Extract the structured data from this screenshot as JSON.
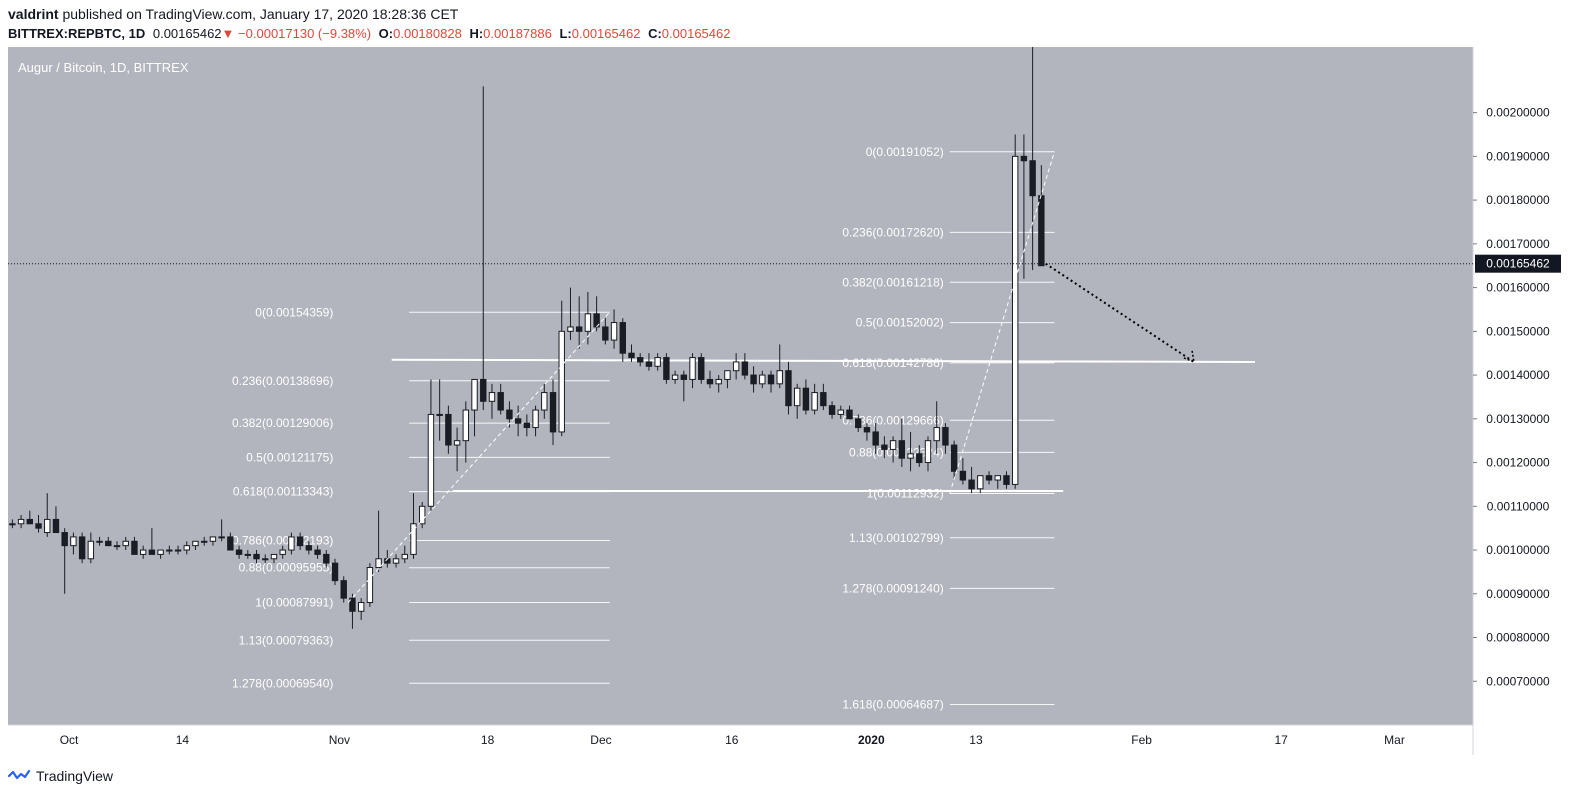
{
  "header": {
    "author": "valdrint",
    "published_text": "published on TradingView.com, January 17, 2020 18:28:36 CET",
    "symbol": "BITTREX:REPBTC, 1D",
    "last": "0.00165462",
    "change_arrow": "▼",
    "change": "−0.00017130 (−9.38%)",
    "o_label": "O:",
    "o_value": "0.00180828",
    "h_label": "H:",
    "h_value": "0.00187886",
    "l_label": "L:",
    "l_value": "0.00165462",
    "c_label": "C:",
    "c_value": "0.00165462"
  },
  "footer": {
    "brand": "TradingView",
    "logo_icon": "tradingview-logo-icon"
  },
  "colors": {
    "background": "#b2b5be",
    "candle_up": "#ffffff",
    "candle_down": "#1b1d24",
    "wick": "#1b1d24",
    "fib_line": "#ffffff",
    "price_badge": "#131722",
    "negative": "#e0473b"
  },
  "chart_data": {
    "type": "candlestick",
    "title": "Augur / Bitcoin, 1D, BITTREX",
    "ylim": [
      0.0006,
      0.00215
    ],
    "y_ticks": [
      "0.00200000",
      "0.00190000",
      "0.00180000",
      "0.00170000",
      "0.00160000",
      "0.00150000",
      "0.00140000",
      "0.00130000",
      "0.00120000",
      "0.00110000",
      "0.00100000",
      "0.00090000",
      "0.00080000",
      "0.00070000"
    ],
    "x_ticks": [
      "Oct",
      "14",
      "Nov",
      "18",
      "Dec",
      "16",
      "2020",
      "13",
      "Feb",
      "17",
      "Mar"
    ],
    "x_range": [
      "2019-09-24",
      "2020-03-10"
    ],
    "x_tick_dates": [
      "2019-10-01",
      "2019-10-14",
      "2019-11-01",
      "2019-11-18",
      "2019-12-01",
      "2019-12-16",
      "2020-01-01",
      "2020-01-13",
      "2020-02-01",
      "2020-02-17",
      "2020-03-01"
    ],
    "current_price": "0.00165462",
    "candles_note": "open/high/low/close per day, estimated",
    "candles": [
      [
        "2019-09-24",
        0.00106,
        0.00107,
        0.00105,
        0.00106
      ],
      [
        "2019-09-25",
        0.00106,
        0.00108,
        0.00105,
        0.00107
      ],
      [
        "2019-09-26",
        0.00107,
        0.00109,
        0.00106,
        0.00106
      ],
      [
        "2019-09-27",
        0.00106,
        0.00108,
        0.00104,
        0.00105
      ],
      [
        "2019-09-28",
        0.00104,
        0.00113,
        0.00103,
        0.00107
      ],
      [
        "2019-09-29",
        0.00107,
        0.0011,
        0.00104,
        0.00104
      ],
      [
        "2019-09-30",
        0.00104,
        0.00105,
        0.0009,
        0.00101
      ],
      [
        "2019-10-01",
        0.00101,
        0.00104,
        0.00099,
        0.00103
      ],
      [
        "2019-10-02",
        0.00103,
        0.00104,
        0.00097,
        0.00098
      ],
      [
        "2019-10-03",
        0.00098,
        0.00104,
        0.00097,
        0.00102
      ],
      [
        "2019-10-04",
        0.00102,
        0.00103,
        0.00101,
        0.00102
      ],
      [
        "2019-10-05",
        0.00102,
        0.00103,
        0.00101,
        0.00101
      ],
      [
        "2019-10-06",
        0.00101,
        0.00102,
        0.001,
        0.00101
      ],
      [
        "2019-10-07",
        0.00101,
        0.00103,
        0.001,
        0.00102
      ],
      [
        "2019-10-08",
        0.00102,
        0.00103,
        0.00099,
        0.00099
      ],
      [
        "2019-10-09",
        0.00099,
        0.00101,
        0.00098,
        0.001
      ],
      [
        "2019-10-10",
        0.001,
        0.00105,
        0.00099,
        0.00099
      ],
      [
        "2019-10-11",
        0.00099,
        0.001,
        0.00098,
        0.001
      ],
      [
        "2019-10-12",
        0.001,
        0.00101,
        0.00099,
        0.001
      ],
      [
        "2019-10-13",
        0.001,
        0.00101,
        0.00099,
        0.001
      ],
      [
        "2019-10-14",
        0.001,
        0.00102,
        0.00099,
        0.00101
      ],
      [
        "2019-10-15",
        0.00101,
        0.00102,
        0.001,
        0.00102
      ],
      [
        "2019-10-16",
        0.00102,
        0.00103,
        0.00101,
        0.00102
      ],
      [
        "2019-10-17",
        0.00102,
        0.00103,
        0.00101,
        0.00103
      ],
      [
        "2019-10-18",
        0.00103,
        0.00107,
        0.00102,
        0.00103
      ],
      [
        "2019-10-19",
        0.00103,
        0.00104,
        0.001,
        0.001
      ],
      [
        "2019-10-20",
        0.001,
        0.00101,
        0.00098,
        0.00099
      ],
      [
        "2019-10-21",
        0.00099,
        0.001,
        0.00098,
        0.00099
      ],
      [
        "2019-10-22",
        0.00099,
        0.001,
        0.00097,
        0.00098
      ],
      [
        "2019-10-23",
        0.00098,
        0.00099,
        0.00097,
        0.00098
      ],
      [
        "2019-10-24",
        0.00098,
        0.00099,
        0.00097,
        0.00099
      ],
      [
        "2019-10-25",
        0.00099,
        0.00101,
        0.00098,
        0.001
      ],
      [
        "2019-10-26",
        0.001,
        0.00104,
        0.00099,
        0.00103
      ],
      [
        "2019-10-27",
        0.00103,
        0.00104,
        0.001,
        0.00101
      ],
      [
        "2019-10-28",
        0.00101,
        0.00102,
        0.00099,
        0.001
      ],
      [
        "2019-10-29",
        0.001,
        0.00101,
        0.00098,
        0.00099
      ],
      [
        "2019-10-30",
        0.00099,
        0.001,
        0.00096,
        0.00097
      ],
      [
        "2019-10-31",
        0.00097,
        0.00098,
        0.00092,
        0.00093
      ],
      [
        "2019-11-01",
        0.00093,
        0.00094,
        0.00088,
        0.00089
      ],
      [
        "2019-11-02",
        0.00089,
        0.0009,
        0.00082,
        0.00086
      ],
      [
        "2019-11-03",
        0.00086,
        0.00089,
        0.00084,
        0.00088
      ],
      [
        "2019-11-04",
        0.00088,
        0.00097,
        0.00087,
        0.00096
      ],
      [
        "2019-11-05",
        0.00096,
        0.00109,
        0.00095,
        0.00098
      ],
      [
        "2019-11-06",
        0.00098,
        0.001,
        0.00096,
        0.00097
      ],
      [
        "2019-11-07",
        0.00097,
        0.00099,
        0.00096,
        0.00098
      ],
      [
        "2019-11-08",
        0.00098,
        0.00101,
        0.00097,
        0.00099
      ],
      [
        "2019-11-09",
        0.00099,
        0.00113,
        0.00098,
        0.00106
      ],
      [
        "2019-11-10",
        0.00106,
        0.00111,
        0.00105,
        0.0011
      ],
      [
        "2019-11-11",
        0.0011,
        0.00139,
        0.00109,
        0.00131
      ],
      [
        "2019-11-12",
        0.00131,
        0.00139,
        0.00125,
        0.00131
      ],
      [
        "2019-11-13",
        0.00131,
        0.00133,
        0.00122,
        0.00124
      ],
      [
        "2019-11-14",
        0.00124,
        0.00128,
        0.00118,
        0.00125
      ],
      [
        "2019-11-15",
        0.00125,
        0.00134,
        0.0012,
        0.00132
      ],
      [
        "2019-11-16",
        0.00132,
        0.00139,
        0.00126,
        0.00139
      ],
      [
        "2019-11-17",
        0.00139,
        0.00206,
        0.00132,
        0.00134
      ],
      [
        "2019-11-18",
        0.00134,
        0.00138,
        0.0013,
        0.00136
      ],
      [
        "2019-11-19",
        0.00136,
        0.00138,
        0.00131,
        0.00132
      ],
      [
        "2019-11-20",
        0.00132,
        0.00134,
        0.00128,
        0.0013
      ],
      [
        "2019-11-21",
        0.0013,
        0.00133,
        0.00126,
        0.00129
      ],
      [
        "2019-11-22",
        0.00129,
        0.00131,
        0.00126,
        0.00128
      ],
      [
        "2019-11-23",
        0.00128,
        0.00133,
        0.00126,
        0.00132
      ],
      [
        "2019-11-24",
        0.00132,
        0.00138,
        0.0013,
        0.00136
      ],
      [
        "2019-11-25",
        0.00136,
        0.00139,
        0.00124,
        0.00127
      ],
      [
        "2019-11-26",
        0.00127,
        0.00157,
        0.00126,
        0.0015
      ],
      [
        "2019-11-27",
        0.0015,
        0.0016,
        0.00148,
        0.00151
      ],
      [
        "2019-11-28",
        0.00151,
        0.00158,
        0.00146,
        0.0015
      ],
      [
        "2019-11-29",
        0.0015,
        0.00159,
        0.00147,
        0.00154
      ],
      [
        "2019-11-30",
        0.00154,
        0.00158,
        0.0015,
        0.00151
      ],
      [
        "2019-12-01",
        0.00151,
        0.00153,
        0.00147,
        0.00148
      ],
      [
        "2019-12-02",
        0.00148,
        0.00155,
        0.00146,
        0.00152
      ],
      [
        "2019-12-03",
        0.00152,
        0.00153,
        0.00143,
        0.00145
      ],
      [
        "2019-12-04",
        0.00145,
        0.00147,
        0.00143,
        0.00144
      ],
      [
        "2019-12-05",
        0.00144,
        0.00145,
        0.00142,
        0.00143
      ],
      [
        "2019-12-06",
        0.00143,
        0.00145,
        0.00141,
        0.00142
      ],
      [
        "2019-12-07",
        0.00142,
        0.00145,
        0.00141,
        0.00144
      ],
      [
        "2019-12-08",
        0.00144,
        0.00145,
        0.00138,
        0.00139
      ],
      [
        "2019-12-09",
        0.00139,
        0.00141,
        0.00138,
        0.0014
      ],
      [
        "2019-12-10",
        0.0014,
        0.00141,
        0.00134,
        0.00139
      ],
      [
        "2019-12-11",
        0.00139,
        0.00145,
        0.00137,
        0.00144
      ],
      [
        "2019-12-12",
        0.00144,
        0.00145,
        0.00138,
        0.00139
      ],
      [
        "2019-12-13",
        0.00139,
        0.00141,
        0.00137,
        0.00138
      ],
      [
        "2019-12-14",
        0.00138,
        0.0014,
        0.00136,
        0.00139
      ],
      [
        "2019-12-15",
        0.00139,
        0.00141,
        0.00137,
        0.00141
      ],
      [
        "2019-12-16",
        0.00141,
        0.00145,
        0.00139,
        0.00143
      ],
      [
        "2019-12-17",
        0.00143,
        0.00145,
        0.00139,
        0.0014
      ],
      [
        "2019-12-18",
        0.0014,
        0.00142,
        0.00136,
        0.00138
      ],
      [
        "2019-12-19",
        0.00138,
        0.00141,
        0.00137,
        0.0014
      ],
      [
        "2019-12-20",
        0.0014,
        0.00141,
        0.00136,
        0.00138
      ],
      [
        "2019-12-21",
        0.00138,
        0.00147,
        0.00137,
        0.00141
      ],
      [
        "2019-12-22",
        0.00141,
        0.00143,
        0.00131,
        0.00133
      ],
      [
        "2019-12-23",
        0.00133,
        0.00138,
        0.0013,
        0.00137
      ],
      [
        "2019-12-24",
        0.00137,
        0.00139,
        0.00131,
        0.00132
      ],
      [
        "2019-12-25",
        0.00132,
        0.00138,
        0.00131,
        0.00136
      ],
      [
        "2019-12-26",
        0.00136,
        0.00138,
        0.00132,
        0.00133
      ],
      [
        "2019-12-27",
        0.00133,
        0.00134,
        0.0013,
        0.00131
      ],
      [
        "2019-12-28",
        0.00131,
        0.00133,
        0.0013,
        0.00132
      ],
      [
        "2019-12-29",
        0.00132,
        0.00133,
        0.0013,
        0.0013
      ],
      [
        "2019-12-30",
        0.0013,
        0.00131,
        0.00127,
        0.00128
      ],
      [
        "2019-12-31",
        0.00128,
        0.00129,
        0.00125,
        0.00127
      ],
      [
        "2020-01-01",
        0.00127,
        0.00129,
        0.00122,
        0.00124
      ],
      [
        "2020-01-02",
        0.00124,
        0.00126,
        0.00121,
        0.00123
      ],
      [
        "2020-01-03",
        0.00123,
        0.00126,
        0.0012,
        0.00125
      ],
      [
        "2020-01-04",
        0.00125,
        0.0013,
        0.00119,
        0.00121
      ],
      [
        "2020-01-05",
        0.00121,
        0.00127,
        0.00118,
        0.00122
      ],
      [
        "2020-01-06",
        0.00122,
        0.00124,
        0.00119,
        0.0012
      ],
      [
        "2020-01-07",
        0.0012,
        0.00126,
        0.00118,
        0.00125
      ],
      [
        "2020-01-08",
        0.00125,
        0.00134,
        0.00122,
        0.00128
      ],
      [
        "2020-01-09",
        0.00128,
        0.00129,
        0.00122,
        0.00124
      ],
      [
        "2020-01-10",
        0.00124,
        0.00125,
        0.00116,
        0.00118
      ],
      [
        "2020-01-11",
        0.00118,
        0.00121,
        0.00115,
        0.00116
      ],
      [
        "2020-01-12",
        0.00116,
        0.00119,
        0.00113,
        0.00114
      ],
      [
        "2020-01-13",
        0.00114,
        0.00117,
        0.00113,
        0.00117
      ],
      [
        "2020-01-14",
        0.00117,
        0.00118,
        0.00115,
        0.00116
      ],
      [
        "2020-01-15",
        0.00116,
        0.00117,
        0.00114,
        0.00117
      ],
      [
        "2020-01-16",
        0.00117,
        0.00118,
        0.00114,
        0.00115
      ],
      [
        "2020-01-17",
        0.00115,
        0.00195,
        0.00114,
        0.0019
      ],
      [
        "2020-01-18",
        0.0019,
        0.00195,
        0.00162,
        0.00189
      ],
      [
        "2020-01-19",
        0.00189,
        0.00215,
        0.00164,
        0.00181
      ],
      [
        "2020-01-20",
        0.00181,
        0.00188,
        0.00165,
        0.00165
      ]
    ],
    "fib_sets": [
      {
        "start_date": "2019-11-09",
        "end_date": "2019-12-02",
        "label_right_date": "2019-11-01",
        "levels": [
          {
            "label": "0(0.00154359)",
            "value": 0.00154359
          },
          {
            "label": "0.236(0.00138696)",
            "value": 0.00138696
          },
          {
            "label": "0.382(0.00129006)",
            "value": 0.00129006
          },
          {
            "label": "0.5(0.00121175)",
            "value": 0.00121175
          },
          {
            "label": "0.618(0.00113343)",
            "value": 0.00113343
          },
          {
            "label": "0.786(0.00102193)",
            "value": 0.00102193
          },
          {
            "label": "0.88(0.00095955)",
            "value": 0.00095955
          },
          {
            "label": "1(0.00087991)",
            "value": 0.00087991
          },
          {
            "label": "1.13(0.00079363)",
            "value": 0.00079363
          },
          {
            "label": "1.278(0.00069540)",
            "value": 0.0006954
          }
        ]
      },
      {
        "start_date": "2020-01-10",
        "end_date": "2020-01-22",
        "label_right_date": "2020-01-10",
        "levels": [
          {
            "label": "0(0.00191052)",
            "value": 0.00191052
          },
          {
            "label": "0.236(0.00172620)",
            "value": 0.0017262
          },
          {
            "label": "0.382(0.00161218)",
            "value": 0.00161218
          },
          {
            "label": "0.5(0.00152002)",
            "value": 0.00152002
          },
          {
            "label": "0.618(0.00142786)",
            "value": 0.00142786
          },
          {
            "label": "0.786(0.00129666)",
            "value": 0.00129666
          },
          {
            "label": "0.88(0.00122324)",
            "value": 0.00122324
          },
          {
            "label": "1(0.00112932)",
            "value": 0.00112932
          },
          {
            "label": "1.13(0.00102799)",
            "value": 0.00102799
          },
          {
            "label": "1.278(0.00091240)",
            "value": 0.0009124
          },
          {
            "label": "1.618(0.00064687)",
            "value": 0.00064687
          }
        ]
      }
    ],
    "horizontal_lines": [
      {
        "from": "2019-11-07",
        "to": "2020-02-14",
        "value": 0.001435,
        "value_end": 0.00143
      },
      {
        "from": "2019-11-14",
        "to": "2020-01-23",
        "value": 0.001135
      }
    ],
    "dashed_fib_trends": [
      {
        "from": [
          "2019-11-02",
          0.00087991
        ],
        "to": [
          "2019-12-02",
          0.00154359
        ]
      },
      {
        "from": [
          "2020-01-10",
          0.00112932
        ],
        "to": [
          "2020-01-22",
          0.00191052
        ]
      }
    ],
    "projection_arrow": {
      "from": [
        "2020-01-20",
        0.00165462
      ],
      "to": [
        "2020-02-07",
        0.00143
      ]
    }
  }
}
